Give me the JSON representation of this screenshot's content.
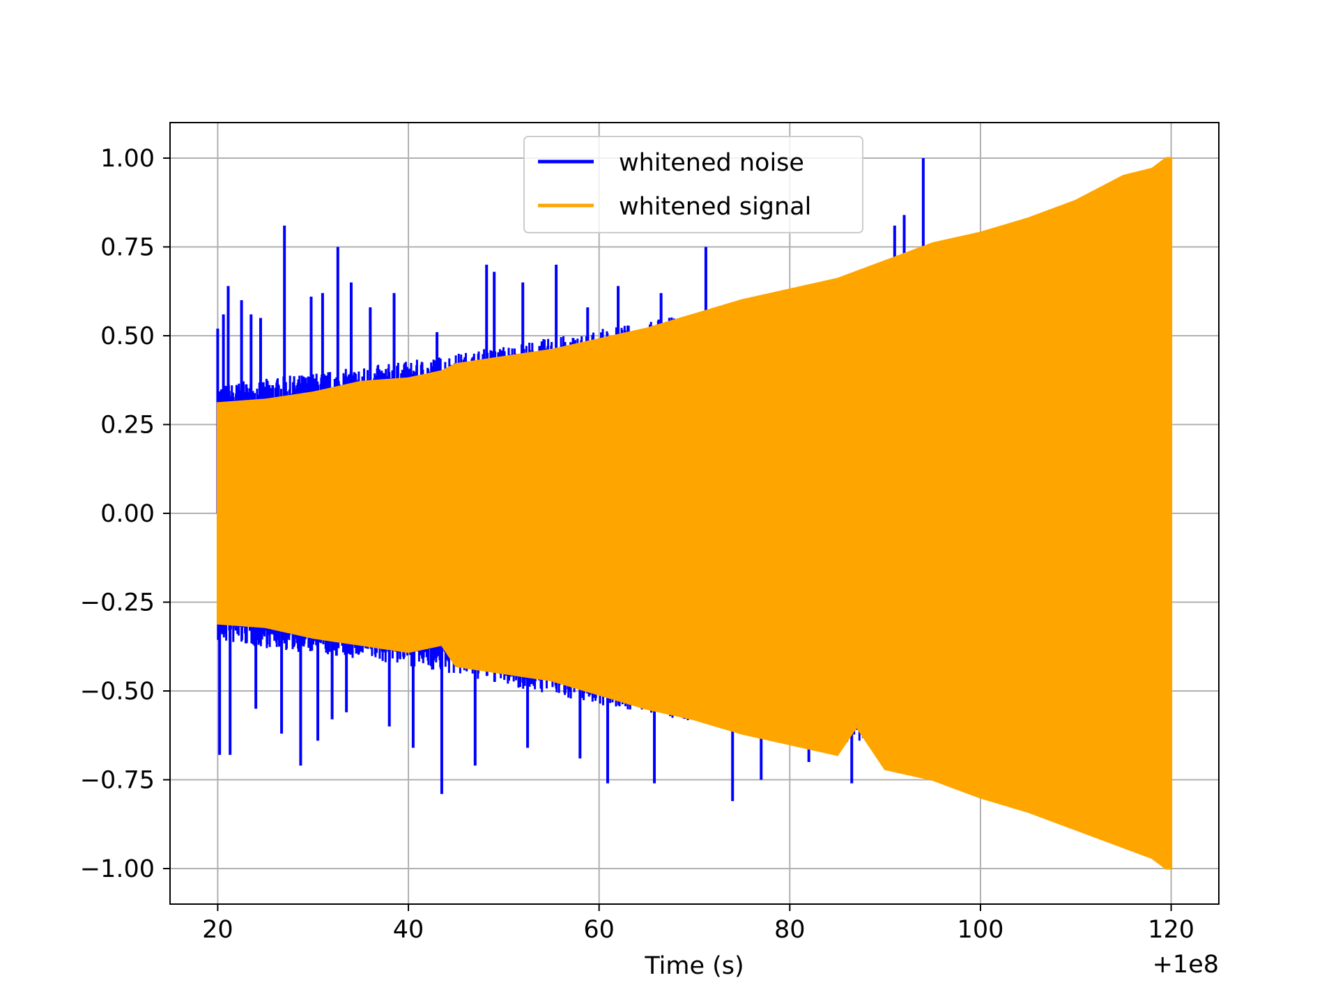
{
  "chart_data": {
    "type": "line",
    "title": "",
    "xlabel": "Time (s)",
    "ylabel": "",
    "x_offset_label": "+1e8",
    "xlim": [
      15,
      125
    ],
    "ylim": [
      -1.1,
      1.1
    ],
    "x_ticks": [
      20,
      40,
      60,
      80,
      100,
      120
    ],
    "x_tick_labels": [
      "20",
      "40",
      "60",
      "80",
      "100",
      "120"
    ],
    "y_ticks": [
      1.0,
      0.75,
      0.5,
      0.25,
      0.0,
      -0.25,
      -0.5,
      -0.75,
      -1.0
    ],
    "y_tick_labels": [
      "1.00",
      "0.75",
      "0.50",
      "0.25",
      "0.00",
      "−0.25",
      "−0.50",
      "−0.75",
      "−1.00"
    ],
    "grid": true,
    "legend_position": "top-center",
    "series": [
      {
        "name": "whitened noise",
        "color": "#0000ff",
        "style": "envelope-with-spikes",
        "x_range": [
          20,
          94
        ],
        "envelope_upper": [
          [
            20,
            0.33
          ],
          [
            40,
            0.39
          ],
          [
            60,
            0.47
          ],
          [
            80,
            0.56
          ],
          [
            94,
            0.62
          ]
        ],
        "envelope_lower": [
          [
            20,
            -0.33
          ],
          [
            40,
            -0.39
          ],
          [
            60,
            -0.49
          ],
          [
            80,
            -0.58
          ],
          [
            94,
            -0.62
          ]
        ],
        "spikes_upper": [
          [
            20.0,
            0.52
          ],
          [
            20.6,
            0.56
          ],
          [
            21.1,
            0.64
          ],
          [
            22.5,
            0.6
          ],
          [
            23.5,
            0.56
          ],
          [
            24.5,
            0.55
          ],
          [
            27.0,
            0.81
          ],
          [
            29.8,
            0.61
          ],
          [
            31.0,
            0.62
          ],
          [
            32.6,
            0.75
          ],
          [
            34.0,
            0.65
          ],
          [
            36.0,
            0.58
          ],
          [
            38.5,
            0.62
          ],
          [
            43.0,
            0.51
          ],
          [
            48.2,
            0.7
          ],
          [
            49.0,
            0.68
          ],
          [
            52.0,
            0.65
          ],
          [
            55.5,
            0.7
          ],
          [
            58.8,
            0.58
          ],
          [
            62.0,
            0.64
          ],
          [
            66.5,
            0.62
          ],
          [
            71.2,
            0.75
          ],
          [
            77.0,
            0.56
          ],
          [
            82.3,
            0.64
          ],
          [
            91.0,
            0.81
          ],
          [
            92.0,
            0.84
          ],
          [
            94.0,
            1.0
          ]
        ],
        "spikes_lower": [
          [
            20.2,
            -0.68
          ],
          [
            21.3,
            -0.68
          ],
          [
            24.0,
            -0.55
          ],
          [
            26.7,
            -0.62
          ],
          [
            28.7,
            -0.71
          ],
          [
            30.5,
            -0.64
          ],
          [
            32.0,
            -0.58
          ],
          [
            33.5,
            -0.56
          ],
          [
            38.0,
            -0.6
          ],
          [
            40.5,
            -0.66
          ],
          [
            43.5,
            -0.79
          ],
          [
            47.0,
            -0.71
          ],
          [
            52.5,
            -0.66
          ],
          [
            58.0,
            -0.69
          ],
          [
            60.9,
            -0.76
          ],
          [
            65.8,
            -0.76
          ],
          [
            74.0,
            -0.81
          ],
          [
            77.0,
            -0.75
          ],
          [
            82.0,
            -0.7
          ],
          [
            86.5,
            -0.76
          ]
        ]
      },
      {
        "name": "whitened signal",
        "color": "#ffa500",
        "style": "oscillation-envelope",
        "x_range": [
          20,
          120
        ],
        "envelope_upper": [
          [
            20,
            0.31
          ],
          [
            25,
            0.32
          ],
          [
            30,
            0.34
          ],
          [
            35,
            0.37
          ],
          [
            40,
            0.38
          ],
          [
            43.5,
            0.4
          ],
          [
            45,
            0.42
          ],
          [
            50,
            0.44
          ],
          [
            55,
            0.46
          ],
          [
            60,
            0.49
          ],
          [
            65,
            0.52
          ],
          [
            70,
            0.56
          ],
          [
            75,
            0.6
          ],
          [
            80,
            0.63
          ],
          [
            85,
            0.66
          ],
          [
            90,
            0.71
          ],
          [
            95,
            0.76
          ],
          [
            100,
            0.79
          ],
          [
            105,
            0.83
          ],
          [
            110,
            0.88
          ],
          [
            115,
            0.95
          ],
          [
            118,
            0.97
          ],
          [
            119.5,
            1.0
          ],
          [
            120,
            1.0
          ]
        ],
        "envelope_lower": [
          [
            20,
            -0.31
          ],
          [
            25,
            -0.32
          ],
          [
            30,
            -0.35
          ],
          [
            35,
            -0.37
          ],
          [
            40,
            -0.39
          ],
          [
            43.5,
            -0.37
          ],
          [
            45,
            -0.43
          ],
          [
            50,
            -0.45
          ],
          [
            55,
            -0.47
          ],
          [
            60,
            -0.51
          ],
          [
            65,
            -0.55
          ],
          [
            70,
            -0.58
          ],
          [
            75,
            -0.62
          ],
          [
            80,
            -0.65
          ],
          [
            85,
            -0.68
          ],
          [
            87,
            -0.6
          ],
          [
            90,
            -0.72
          ],
          [
            95,
            -0.75
          ],
          [
            100,
            -0.8
          ],
          [
            105,
            -0.84
          ],
          [
            110,
            -0.89
          ],
          [
            115,
            -0.94
          ],
          [
            118,
            -0.97
          ],
          [
            119.5,
            -1.0
          ],
          [
            120,
            -1.0
          ]
        ]
      }
    ]
  }
}
